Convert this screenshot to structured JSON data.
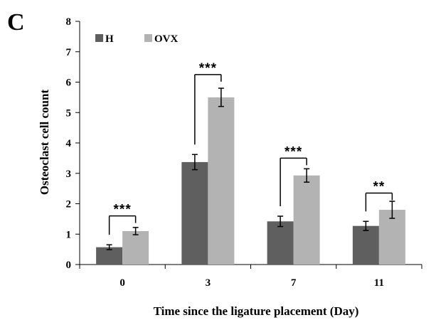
{
  "chart_data": {
    "type": "bar",
    "panel_label": "C",
    "xlabel": "Time since the ligature placement (Day)",
    "ylabel": "Osteoclast cell count",
    "categories": [
      "0",
      "3",
      "7",
      "11"
    ],
    "ylim": [
      0,
      8
    ],
    "yticks": [
      "0",
      "1",
      "2",
      "3",
      "4",
      "5",
      "6",
      "7",
      "8"
    ],
    "grid": false,
    "legend_position": "top-left",
    "series": [
      {
        "name": "H",
        "color": "#5f5f5f",
        "values": [
          0.57,
          3.37,
          1.42,
          1.27
        ],
        "errors": [
          0.08,
          0.25,
          0.17,
          0.15
        ]
      },
      {
        "name": "OVX",
        "color": "#b3b3b3",
        "values": [
          1.1,
          5.5,
          2.93,
          1.8
        ],
        "errors": [
          0.12,
          0.3,
          0.22,
          0.28
        ]
      }
    ],
    "significance": [
      {
        "category": "0",
        "label": "***",
        "bracket_y": 1.6
      },
      {
        "category": "3",
        "label": "***",
        "bracket_y": 6.25
      },
      {
        "category": "7",
        "label": "***",
        "bracket_y": 3.5
      },
      {
        "category": "11",
        "label": "**",
        "bracket_y": 2.35
      }
    ]
  }
}
